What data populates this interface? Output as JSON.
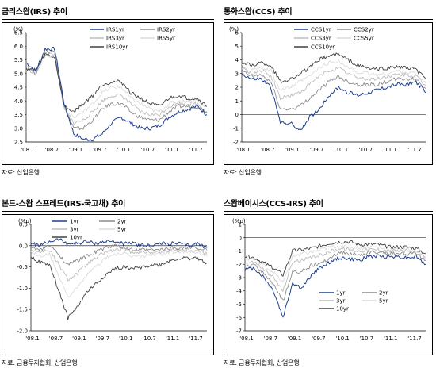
{
  "chart_data": [
    {
      "type": "line",
      "title": "금리스왑(IRS) 추이",
      "ylabel": "(%)",
      "source": "자료: 산업은행",
      "ylim": [
        2.5,
        6.5
      ],
      "yticks": [
        "2.5",
        "3.0",
        "3.5",
        "4.0",
        "4.5",
        "5.0",
        "5.5",
        "6.0",
        "6.5"
      ],
      "xticks": [
        "'08.1",
        "'08.7",
        "'09.1",
        "'09.7",
        "'10.1",
        "'10.7",
        "'11.1",
        "'11.7"
      ],
      "x": [
        "'08.1",
        "'08.4",
        "'08.7",
        "'08.10",
        "'08.12",
        "'09.1",
        "'09.3",
        "'09.5",
        "'09.7",
        "'09.10",
        "'10.1",
        "'10.3",
        "'10.5",
        "'10.7",
        "'10.10",
        "'11.1",
        "'11.3",
        "'11.5",
        "'11.7",
        "'11.9"
      ],
      "series": [
        {
          "name": "IRS1yr",
          "color": "#1f3f8f",
          "values": [
            5.4,
            5.1,
            5.9,
            5.9,
            3.9,
            2.8,
            2.6,
            2.6,
            2.8,
            3.2,
            3.4,
            3.2,
            3.0,
            3.0,
            3.1,
            3.4,
            3.6,
            3.7,
            3.8,
            3.5
          ]
        },
        {
          "name": "IRS2yr",
          "color": "#8c8c8c",
          "values": [
            5.3,
            5.0,
            5.8,
            5.8,
            3.8,
            3.0,
            3.0,
            3.3,
            3.7,
            3.9,
            3.9,
            3.6,
            3.4,
            3.3,
            3.3,
            3.6,
            3.8,
            3.8,
            3.8,
            3.6
          ]
        },
        {
          "name": "IRS3yr",
          "color": "#bdbdbd",
          "values": [
            5.2,
            5.0,
            5.7,
            5.7,
            3.7,
            3.2,
            3.3,
            3.6,
            4.0,
            4.2,
            4.2,
            3.9,
            3.6,
            3.5,
            3.5,
            3.8,
            3.9,
            3.9,
            3.9,
            3.6
          ]
        },
        {
          "name": "IRS5yr",
          "color": "#dcdcdc",
          "values": [
            5.2,
            5.0,
            5.7,
            5.6,
            3.7,
            3.4,
            3.6,
            3.9,
            4.3,
            4.5,
            4.5,
            4.1,
            3.9,
            3.7,
            3.6,
            3.9,
            4.0,
            4.0,
            4.0,
            3.7
          ]
        },
        {
          "name": "IRS10yr",
          "color": "#404040",
          "values": [
            5.2,
            5.1,
            5.7,
            5.6,
            3.8,
            3.6,
            3.9,
            4.2,
            4.6,
            4.7,
            4.7,
            4.3,
            4.1,
            3.9,
            3.8,
            4.1,
            4.2,
            4.1,
            4.1,
            3.8
          ]
        }
      ]
    },
    {
      "type": "line",
      "title": "통화스왑(CCS) 추이",
      "ylabel": "(%)",
      "source": "자료: 산업은행",
      "ylim": [
        -2,
        6
      ],
      "yticks": [
        "-2",
        "-1",
        "0",
        "1",
        "2",
        "3",
        "4",
        "5",
        "6"
      ],
      "xticks": [
        "'08.1",
        "'08.7",
        "'09.1",
        "'09.7",
        "'10.1",
        "'10.7",
        "'11.1",
        "'11.7"
      ],
      "x": [
        "'08.1",
        "'08.4",
        "'08.7",
        "'08.10",
        "'08.12",
        "'09.1",
        "'09.3",
        "'09.5",
        "'09.7",
        "'09.10",
        "'10.1",
        "'10.3",
        "'10.5",
        "'10.7",
        "'10.10",
        "'11.1",
        "'11.3",
        "'11.5",
        "'11.7",
        "'11.9"
      ],
      "series": [
        {
          "name": "CCS1yr",
          "color": "#1f3f8f",
          "values": [
            3.0,
            2.6,
            2.6,
            2.0,
            -0.6,
            -0.6,
            -1.2,
            -0.2,
            0.4,
            1.4,
            2.0,
            1.6,
            1.4,
            1.6,
            1.8,
            2.0,
            2.2,
            2.2,
            2.4,
            1.6
          ]
        },
        {
          "name": "CCS2yr",
          "color": "#8c8c8c",
          "values": [
            3.2,
            2.8,
            2.9,
            2.4,
            0.4,
            0.4,
            0.6,
            1.2,
            1.8,
            2.4,
            2.8,
            2.4,
            2.2,
            2.2,
            2.2,
            2.4,
            2.6,
            2.6,
            2.6,
            1.9
          ]
        },
        {
          "name": "CCS3yr",
          "color": "#bdbdbd",
          "values": [
            3.4,
            3.0,
            3.2,
            2.8,
            1.2,
            1.4,
            1.6,
            2.2,
            2.8,
            3.2,
            3.4,
            3.0,
            2.7,
            2.6,
            2.6,
            2.8,
            2.9,
            2.9,
            2.8,
            2.1
          ]
        },
        {
          "name": "CCS5yr",
          "color": "#dcdcdc",
          "values": [
            3.6,
            3.2,
            3.4,
            3.2,
            1.8,
            2.0,
            2.4,
            2.8,
            3.4,
            3.8,
            3.9,
            3.4,
            3.1,
            3.0,
            2.9,
            3.0,
            3.2,
            3.1,
            3.0,
            2.3
          ]
        },
        {
          "name": "CCS10yr",
          "color": "#404040",
          "values": [
            3.8,
            3.6,
            3.8,
            3.6,
            2.4,
            2.6,
            3.0,
            3.4,
            4.0,
            4.3,
            4.4,
            4.0,
            3.6,
            3.4,
            3.3,
            3.4,
            3.5,
            3.4,
            3.3,
            2.6
          ]
        }
      ]
    },
    {
      "type": "line",
      "title": "본드-스왑 스프레드(IRS-국고채) 추이",
      "ylabel": "(%p)",
      "source": "자료: 금융투자협회, 산업은행",
      "ylim": [
        -2.0,
        0.5
      ],
      "yticks": [
        "-2.0",
        "-1.5",
        "-1.0",
        "-0.5",
        "0.0",
        "0.5"
      ],
      "xticks": [
        "'08.1",
        "'08.7",
        "'09.1",
        "'09.7",
        "'10.1",
        "'10.7",
        "'11.1",
        "'11.7"
      ],
      "x": [
        "'08.1",
        "'08.4",
        "'08.7",
        "'08.10",
        "'08.12",
        "'09.1",
        "'09.3",
        "'09.5",
        "'09.7",
        "'09.10",
        "'10.1",
        "'10.3",
        "'10.5",
        "'10.7",
        "'10.10",
        "'11.1",
        "'11.3",
        "'11.5",
        "'11.7",
        "'11.9"
      ],
      "series": [
        {
          "name": "1yr",
          "color": "#1f3f8f",
          "values": [
            0.05,
            0.0,
            0.1,
            0.15,
            0.05,
            0.05,
            0.1,
            0.05,
            0.1,
            0.1,
            0.05,
            0.05,
            0.0,
            0.0,
            0.05,
            0.05,
            0.05,
            0.0,
            0.05,
            -0.05
          ]
        },
        {
          "name": "2yr",
          "color": "#8c8c8c",
          "values": [
            -0.05,
            -0.1,
            0.0,
            -0.2,
            -0.45,
            -0.35,
            -0.25,
            -0.15,
            -0.05,
            0.0,
            -0.05,
            -0.1,
            -0.1,
            -0.1,
            -0.1,
            -0.05,
            -0.05,
            -0.05,
            -0.05,
            -0.1
          ]
        },
        {
          "name": "3yr",
          "color": "#bdbdbd",
          "values": [
            -0.1,
            -0.15,
            -0.1,
            -0.45,
            -0.8,
            -0.65,
            -0.45,
            -0.3,
            -0.15,
            -0.1,
            -0.1,
            -0.15,
            -0.15,
            -0.15,
            -0.15,
            -0.1,
            -0.1,
            -0.1,
            -0.1,
            -0.2
          ]
        },
        {
          "name": "5yr",
          "color": "#dcdcdc",
          "values": [
            -0.15,
            -0.25,
            -0.2,
            -0.7,
            -1.2,
            -1.0,
            -0.7,
            -0.5,
            -0.3,
            -0.2,
            -0.2,
            -0.25,
            -0.25,
            -0.2,
            -0.2,
            -0.15,
            -0.15,
            -0.15,
            -0.15,
            -0.25
          ]
        },
        {
          "name": "10yr",
          "color": "#404040",
          "values": [
            -0.25,
            -0.4,
            -0.45,
            -1.05,
            -1.7,
            -1.45,
            -1.1,
            -0.9,
            -0.7,
            -0.55,
            -0.5,
            -0.55,
            -0.5,
            -0.45,
            -0.45,
            -0.35,
            -0.3,
            -0.3,
            -0.3,
            -0.4
          ]
        }
      ]
    },
    {
      "type": "line",
      "title": "스왑베이시스(CCS-IRS) 추이",
      "ylabel": "(%p)",
      "source": "자료: 금융투자협회, 산업은행",
      "ylim": [
        -7,
        1
      ],
      "yticks": [
        "-7",
        "-6",
        "-5",
        "-4",
        "-3",
        "-2",
        "-1",
        "0",
        "1"
      ],
      "xticks": [
        "'08.1",
        "'08.7",
        "'09.1",
        "'09.7",
        "'10.1",
        "'10.7",
        "'11.1",
        "'11.7"
      ],
      "x": [
        "'08.1",
        "'08.4",
        "'08.7",
        "'08.10",
        "'08.12",
        "'09.1",
        "'09.3",
        "'09.5",
        "'09.7",
        "'09.10",
        "'10.1",
        "'10.3",
        "'10.5",
        "'10.7",
        "'10.10",
        "'11.1",
        "'11.3",
        "'11.5",
        "'11.7",
        "'11.9"
      ],
      "series": [
        {
          "name": "1yr",
          "color": "#1f3f8f",
          "values": [
            -2.4,
            -2.3,
            -3.0,
            -4.0,
            -6.0,
            -3.4,
            -3.8,
            -2.8,
            -2.2,
            -1.8,
            -1.5,
            -1.6,
            -1.7,
            -1.4,
            -1.4,
            -1.4,
            -1.4,
            -1.5,
            -1.4,
            -2.0
          ]
        },
        {
          "name": "2yr",
          "color": "#8c8c8c",
          "values": [
            -2.2,
            -2.1,
            -2.7,
            -3.5,
            -4.8,
            -2.6,
            -2.5,
            -2.1,
            -1.9,
            -1.5,
            -1.1,
            -1.2,
            -1.3,
            -1.1,
            -1.1,
            -1.2,
            -1.2,
            -1.2,
            -1.2,
            -1.7
          ]
        },
        {
          "name": "3yr",
          "color": "#bdbdbd",
          "values": [
            -1.9,
            -1.8,
            -2.4,
            -3.0,
            -4.0,
            -1.8,
            -1.7,
            -1.5,
            -1.3,
            -1.0,
            -0.8,
            -0.9,
            -1.0,
            -0.9,
            -0.9,
            -1.0,
            -1.0,
            -1.0,
            -1.1,
            -1.5
          ]
        },
        {
          "name": "5yr",
          "color": "#dcdcdc",
          "values": [
            -1.6,
            -1.6,
            -2.1,
            -2.6,
            -3.4,
            -1.4,
            -1.2,
            -1.1,
            -0.9,
            -0.7,
            -0.6,
            -0.7,
            -0.8,
            -0.7,
            -0.7,
            -0.9,
            -0.9,
            -0.9,
            -1.0,
            -1.4
          ]
        },
        {
          "name": "10yr",
          "color": "#404040",
          "values": [
            -1.4,
            -1.5,
            -1.9,
            -2.3,
            -2.8,
            -1.0,
            -0.9,
            -0.8,
            -0.6,
            -0.4,
            -0.3,
            -0.3,
            -0.5,
            -0.5,
            -0.5,
            -0.7,
            -0.7,
            -0.7,
            -0.8,
            -1.2
          ]
        }
      ]
    }
  ]
}
